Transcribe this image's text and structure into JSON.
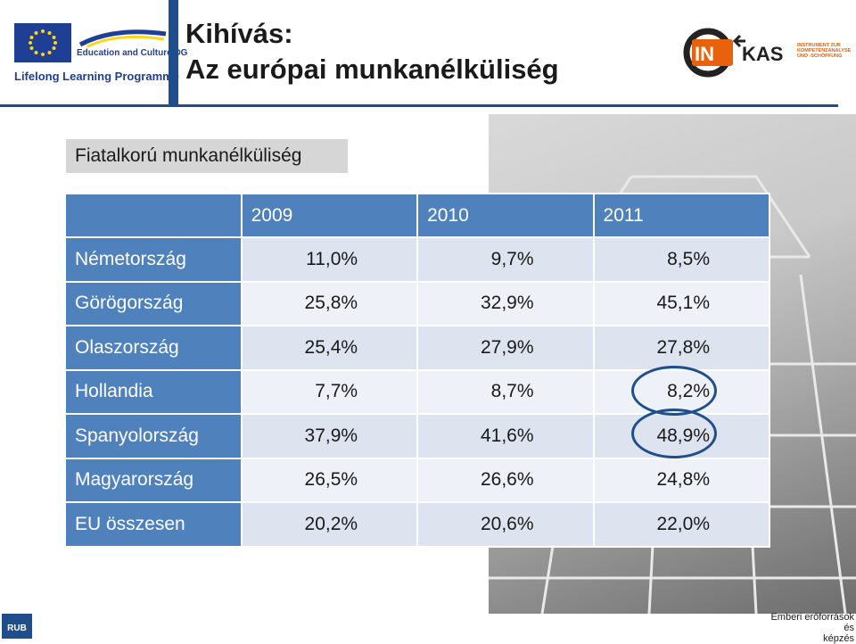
{
  "header": {
    "eu_ec_text": "Education and Culture DG",
    "eu_llp_text": "Lifelong Learning Programme",
    "title_line1": "Kihívás:",
    "title_line2": "Az európai munkanélküliség",
    "inkas_in": "IN",
    "inkas_kas": "KAS",
    "inkas_sub1": "INSTRUMENT ZUR",
    "inkas_sub2": "KOMPETENZANALYSE",
    "inkas_sub3": "UND -SCHÖPFUNG"
  },
  "subtitle": "Fiatalkorú munkanélküliség",
  "table": {
    "years": [
      "2009",
      "2010",
      "2011"
    ],
    "rows": [
      {
        "country": "Németország",
        "values": [
          "11,0%",
          "9,7%",
          "8,5%"
        ]
      },
      {
        "country": "Görögország",
        "values": [
          "25,8%",
          "32,9%",
          "45,1%"
        ]
      },
      {
        "country": "Olaszország",
        "values": [
          "25,4%",
          "27,9%",
          "27,8%"
        ]
      },
      {
        "country": "Hollandia",
        "values": [
          "7,7%",
          "8,7%",
          "8,2%"
        ]
      },
      {
        "country": "Spanyolország",
        "values": [
          "37,9%",
          "41,6%",
          "48,9%"
        ]
      },
      {
        "country": "Magyarország",
        "values": [
          "26,5%",
          "26,6%",
          "24,8%"
        ]
      },
      {
        "country": "EU összesen",
        "values": [
          "20,2%",
          "20,6%",
          "22,0%"
        ]
      }
    ]
  },
  "footer": {
    "rub": "RUB",
    "text_line1": "Emberi erőforrások",
    "text_line2": "és",
    "text_line3": "képzés"
  },
  "colors": {
    "table_header": "#4f81bd",
    "row_band_dark": "#dde3ef",
    "row_band_light": "#eef1f7",
    "accent_bar": "#1f4e8c",
    "inkas_orange": "#e8620d"
  }
}
